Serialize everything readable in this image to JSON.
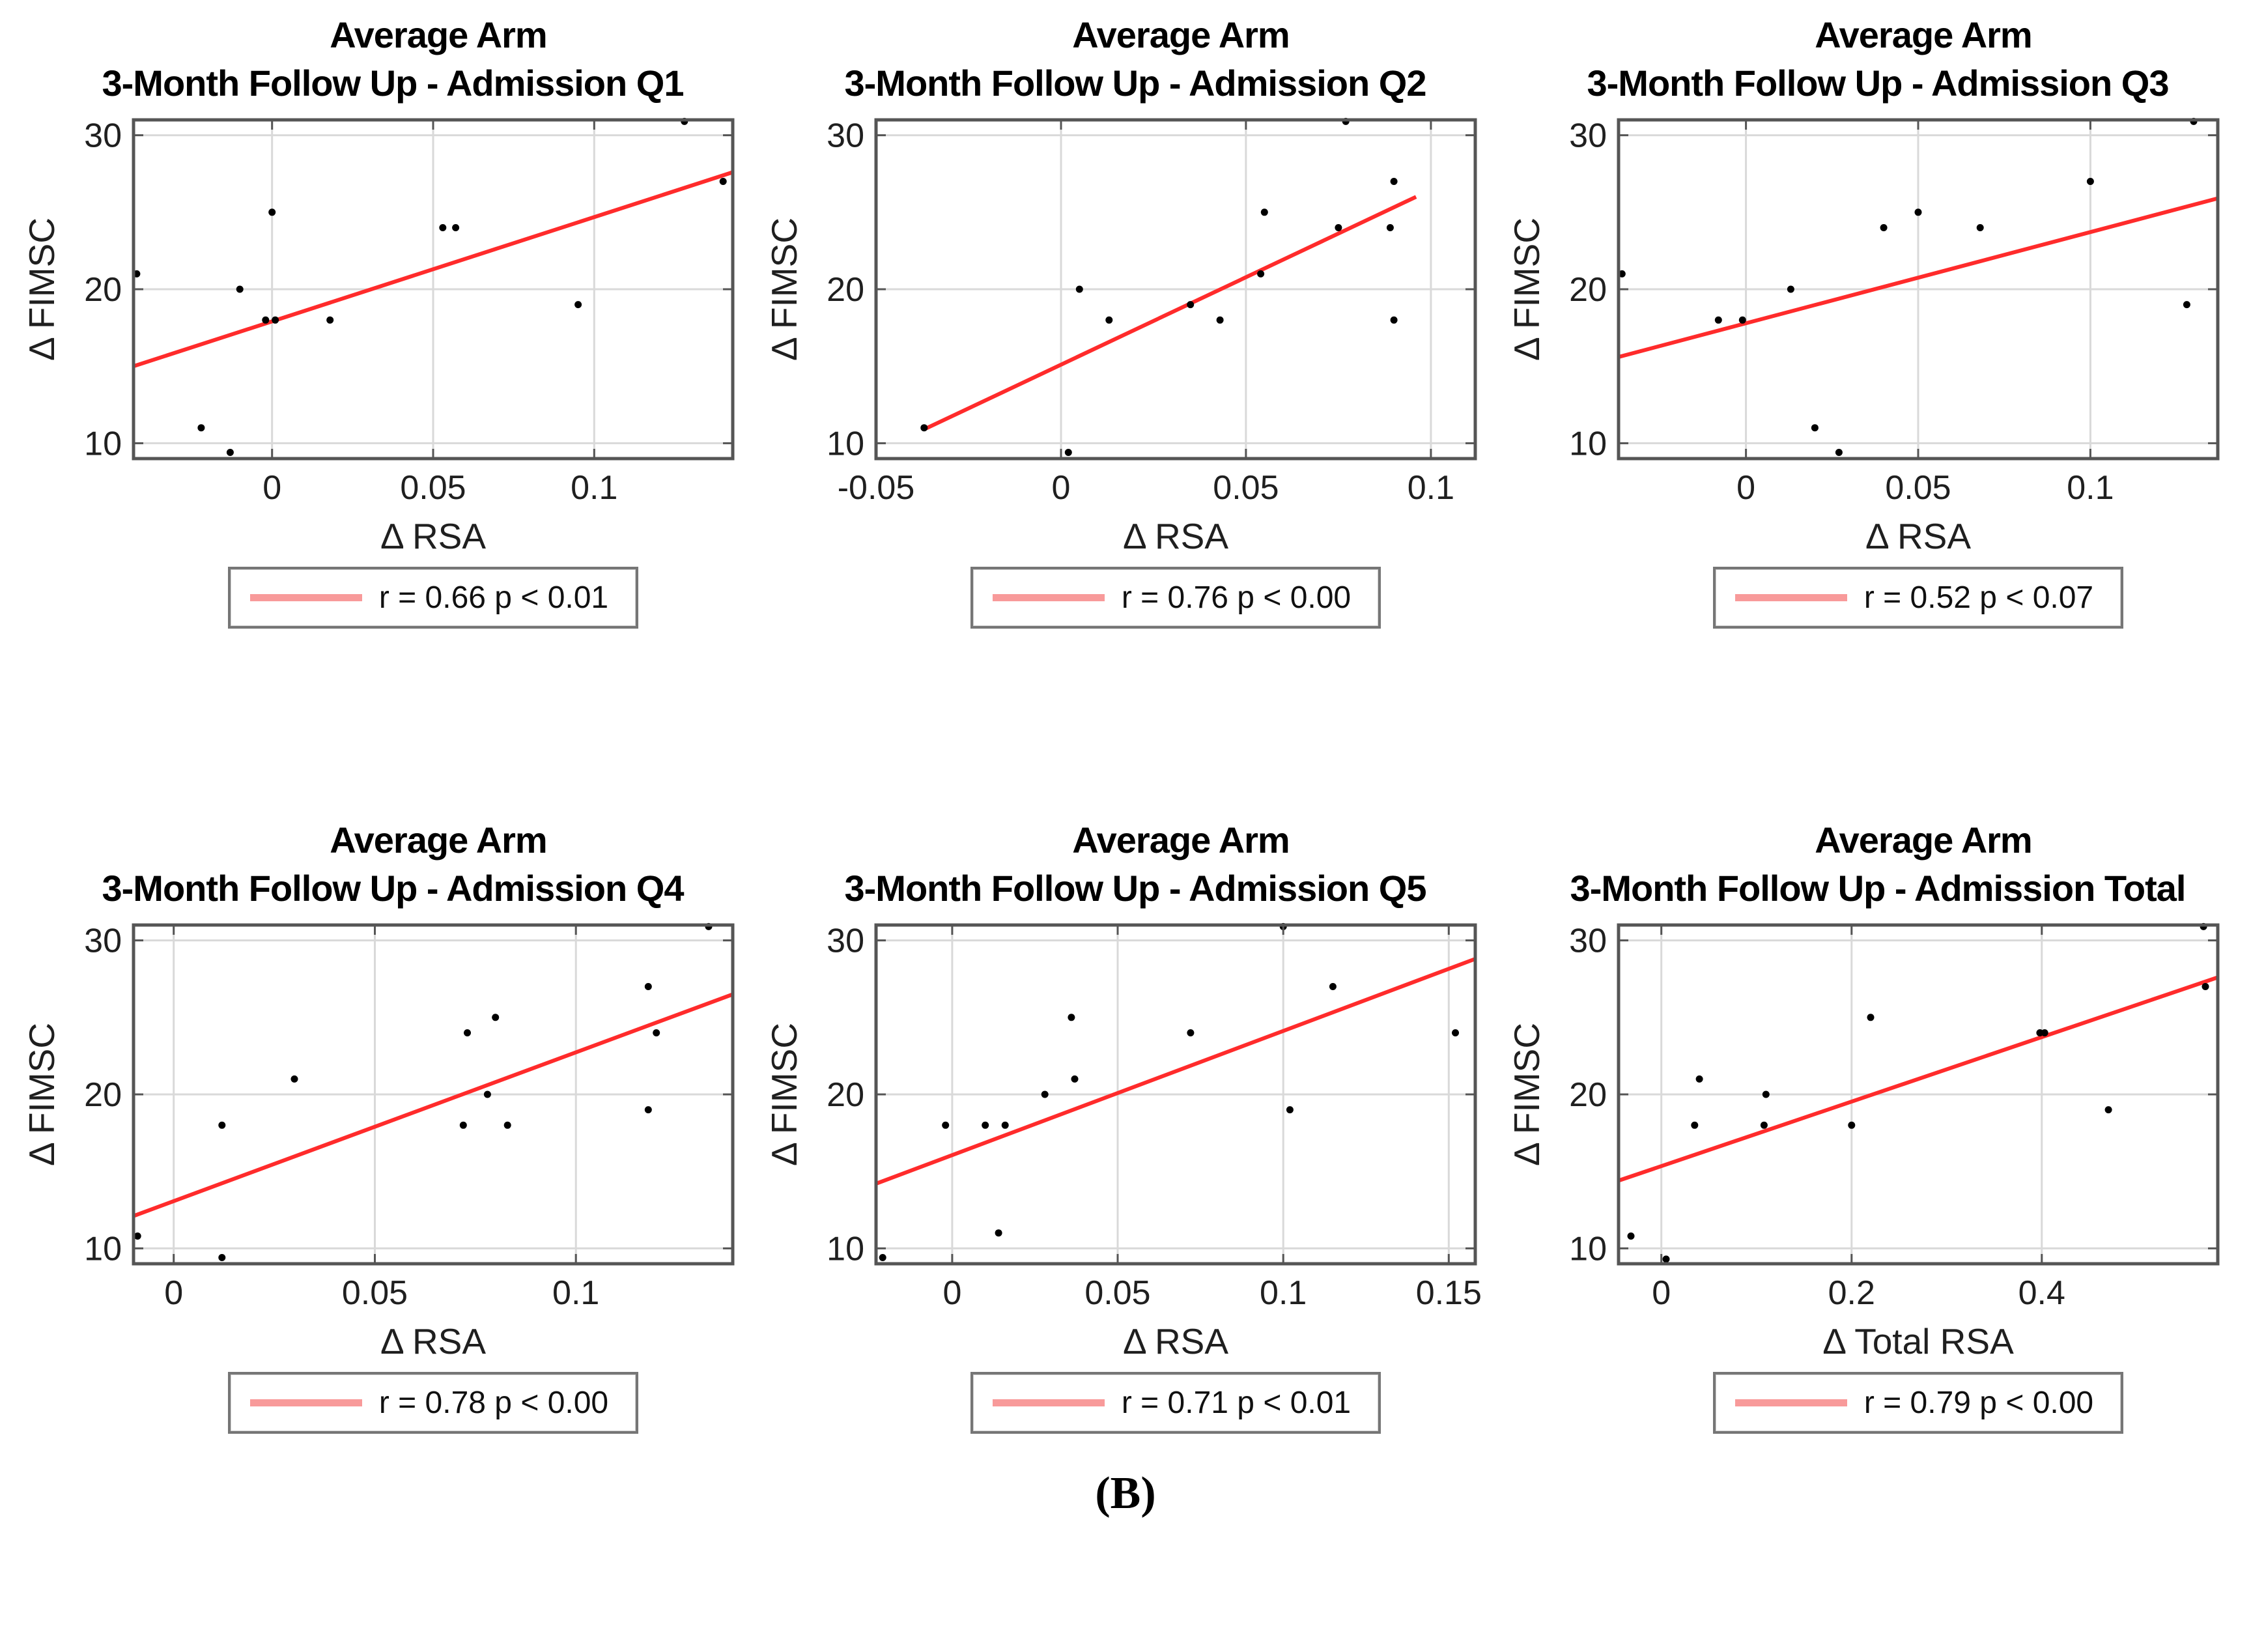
{
  "figure_label": "(B)",
  "colors": {
    "trendline": "#ff2b2b",
    "legend_line": "#f89a9a",
    "marker": "#000000",
    "grid_line": "#d9d9d9",
    "axis_frame": "#555555",
    "tick_text": "#1f1f1f",
    "title_text": "#000000",
    "legend_border": "#767676",
    "background": "#ffffff"
  },
  "chart_data": [
    {
      "type": "scatter",
      "title_line1": "Average Arm",
      "title_line2": "3-Month Follow Up - Admission Q1",
      "xlabel": "Δ RSA",
      "ylabel": "Δ FIMSC",
      "xlim": [
        -0.043,
        0.143
      ],
      "xticks": [
        0,
        0.05,
        0.1
      ],
      "xtick_labels": [
        "0",
        "0.05",
        "0.1"
      ],
      "ylim": [
        9,
        31
      ],
      "yticks": [
        10,
        20,
        30
      ],
      "ytick_labels": [
        "10",
        "20",
        "30"
      ],
      "grid": true,
      "points": [
        [
          -0.042,
          21
        ],
        [
          -0.022,
          11
        ],
        [
          -0.013,
          9.4
        ],
        [
          -0.01,
          20
        ],
        [
          0.0,
          25
        ],
        [
          -0.002,
          18
        ],
        [
          0.001,
          18
        ],
        [
          0.018,
          18
        ],
        [
          0.053,
          24
        ],
        [
          0.057,
          24
        ],
        [
          0.095,
          19
        ],
        [
          0.128,
          30.9
        ],
        [
          0.14,
          27
        ]
      ],
      "trendline": [
        [
          -0.043,
          15.0
        ],
        [
          0.143,
          27.6
        ]
      ],
      "legend_label": "r = 0.66 p < 0.01",
      "r": 0.66,
      "p_text": "p < 0.01"
    },
    {
      "type": "scatter",
      "title_line1": "Average Arm",
      "title_line2": "3-Month Follow Up - Admission Q2",
      "xlabel": "Δ RSA",
      "ylabel": "Δ FIMSC",
      "xlim": [
        -0.05,
        0.112
      ],
      "xticks": [
        -0.05,
        0,
        0.05,
        0.1
      ],
      "xtick_labels": [
        "-0.05",
        "0",
        "0.05",
        "0.1"
      ],
      "ylim": [
        9,
        31
      ],
      "yticks": [
        10,
        20,
        30
      ],
      "ytick_labels": [
        "10",
        "20",
        "30"
      ],
      "grid": true,
      "points": [
        [
          -0.037,
          11
        ],
        [
          0.002,
          9.4
        ],
        [
          0.005,
          20
        ],
        [
          0.013,
          18
        ],
        [
          0.035,
          19
        ],
        [
          0.043,
          18
        ],
        [
          0.054,
          21
        ],
        [
          0.055,
          25
        ],
        [
          0.075,
          24
        ],
        [
          0.077,
          30.9
        ],
        [
          0.089,
          24
        ],
        [
          0.09,
          27
        ],
        [
          0.09,
          18
        ]
      ],
      "trendline": [
        [
          -0.037,
          10.9
        ],
        [
          0.096,
          26.0
        ]
      ],
      "legend_label": "r = 0.76 p < 0.00",
      "r": 0.76,
      "p_text": "p < 0.00"
    },
    {
      "type": "scatter",
      "title_line1": "Average Arm",
      "title_line2": "3-Month Follow Up - Admission Q3",
      "xlabel": "Δ RSA",
      "ylabel": "Δ FIMSC",
      "xlim": [
        -0.037,
        0.137
      ],
      "xticks": [
        0,
        0.05,
        0.1
      ],
      "xtick_labels": [
        "0",
        "0.05",
        "0.1"
      ],
      "ylim": [
        9,
        31
      ],
      "yticks": [
        10,
        20,
        30
      ],
      "ytick_labels": [
        "10",
        "20",
        "30"
      ],
      "grid": true,
      "points": [
        [
          -0.036,
          21
        ],
        [
          -0.008,
          18
        ],
        [
          -0.001,
          18
        ],
        [
          0.013,
          20
        ],
        [
          0.02,
          11
        ],
        [
          0.027,
          9.4
        ],
        [
          0.04,
          24
        ],
        [
          0.05,
          25
        ],
        [
          0.068,
          24
        ],
        [
          0.1,
          27
        ],
        [
          0.128,
          19
        ],
        [
          0.13,
          30.9
        ]
      ],
      "trendline": [
        [
          -0.037,
          15.6
        ],
        [
          0.137,
          25.9
        ]
      ],
      "legend_label": "r = 0.52 p < 0.07",
      "r": 0.52,
      "p_text": "p < 0.07"
    },
    {
      "type": "scatter",
      "title_line1": "Average Arm",
      "title_line2": "3-Month Follow Up - Admission Q4",
      "xlabel": "Δ RSA",
      "ylabel": "Δ FIMSC",
      "xlim": [
        -0.01,
        0.139
      ],
      "xticks": [
        0,
        0.05,
        0.1
      ],
      "xtick_labels": [
        "0",
        "0.05",
        "0.1"
      ],
      "ylim": [
        9,
        31
      ],
      "yticks": [
        10,
        20,
        30
      ],
      "ytick_labels": [
        "10",
        "20",
        "30"
      ],
      "grid": true,
      "points": [
        [
          -0.009,
          10.8
        ],
        [
          0.012,
          9.4
        ],
        [
          0.012,
          18
        ],
        [
          0.03,
          21
        ],
        [
          0.072,
          18
        ],
        [
          0.073,
          24
        ],
        [
          0.078,
          20
        ],
        [
          0.08,
          25
        ],
        [
          0.083,
          18
        ],
        [
          0.118,
          27
        ],
        [
          0.118,
          19
        ],
        [
          0.12,
          24
        ],
        [
          0.133,
          30.9
        ]
      ],
      "trendline": [
        [
          -0.01,
          12.1
        ],
        [
          0.139,
          26.5
        ]
      ],
      "legend_label": "r = 0.78 p < 0.00",
      "r": 0.78,
      "p_text": "p < 0.00"
    },
    {
      "type": "scatter",
      "title_line1": "Average Arm",
      "title_line2": "3-Month Follow Up - Admission Q5",
      "xlabel": "Δ RSA",
      "ylabel": "Δ FIMSC",
      "xlim": [
        -0.023,
        0.158
      ],
      "xticks": [
        0,
        0.05,
        0.1,
        0.15
      ],
      "xtick_labels": [
        "0",
        "0.05",
        "0.1",
        "0.15"
      ],
      "ylim": [
        9,
        31
      ],
      "yticks": [
        10,
        20,
        30
      ],
      "ytick_labels": [
        "10",
        "20",
        "30"
      ],
      "grid": true,
      "points": [
        [
          -0.021,
          9.4
        ],
        [
          -0.002,
          18
        ],
        [
          0.01,
          18
        ],
        [
          0.014,
          11
        ],
        [
          0.016,
          18
        ],
        [
          0.028,
          20
        ],
        [
          0.036,
          25
        ],
        [
          0.037,
          21
        ],
        [
          0.072,
          24
        ],
        [
          0.1,
          30.9
        ],
        [
          0.102,
          19
        ],
        [
          0.115,
          27
        ],
        [
          0.152,
          24
        ]
      ],
      "trendline": [
        [
          -0.023,
          14.2
        ],
        [
          0.158,
          28.8
        ]
      ],
      "legend_label": "r = 0.71 p < 0.01",
      "r": 0.71,
      "p_text": "p < 0.01"
    },
    {
      "type": "scatter",
      "title_line1": "Average Arm",
      "title_line2": "3-Month Follow Up - Admission Total",
      "xlabel": "Δ Total RSA",
      "ylabel": "Δ FIMSC",
      "xlim": [
        -0.045,
        0.585
      ],
      "xticks": [
        0,
        0.2,
        0.4
      ],
      "xtick_labels": [
        "0",
        "0.2",
        "0.4"
      ],
      "ylim": [
        9,
        31
      ],
      "yticks": [
        10,
        20,
        30
      ],
      "ytick_labels": [
        "10",
        "20",
        "30"
      ],
      "grid": true,
      "points": [
        [
          -0.032,
          10.8
        ],
        [
          0.005,
          9.3
        ],
        [
          0.035,
          18
        ],
        [
          0.04,
          21
        ],
        [
          0.108,
          18
        ],
        [
          0.11,
          20
        ],
        [
          0.2,
          18
        ],
        [
          0.22,
          25
        ],
        [
          0.398,
          24
        ],
        [
          0.403,
          24
        ],
        [
          0.47,
          19
        ],
        [
          0.57,
          30.9
        ],
        [
          0.572,
          27
        ]
      ],
      "trendline": [
        [
          -0.045,
          14.4
        ],
        [
          0.585,
          27.6
        ]
      ],
      "legend_label": "r = 0.79 p < 0.00",
      "r": 0.79,
      "p_text": "p < 0.00"
    }
  ]
}
